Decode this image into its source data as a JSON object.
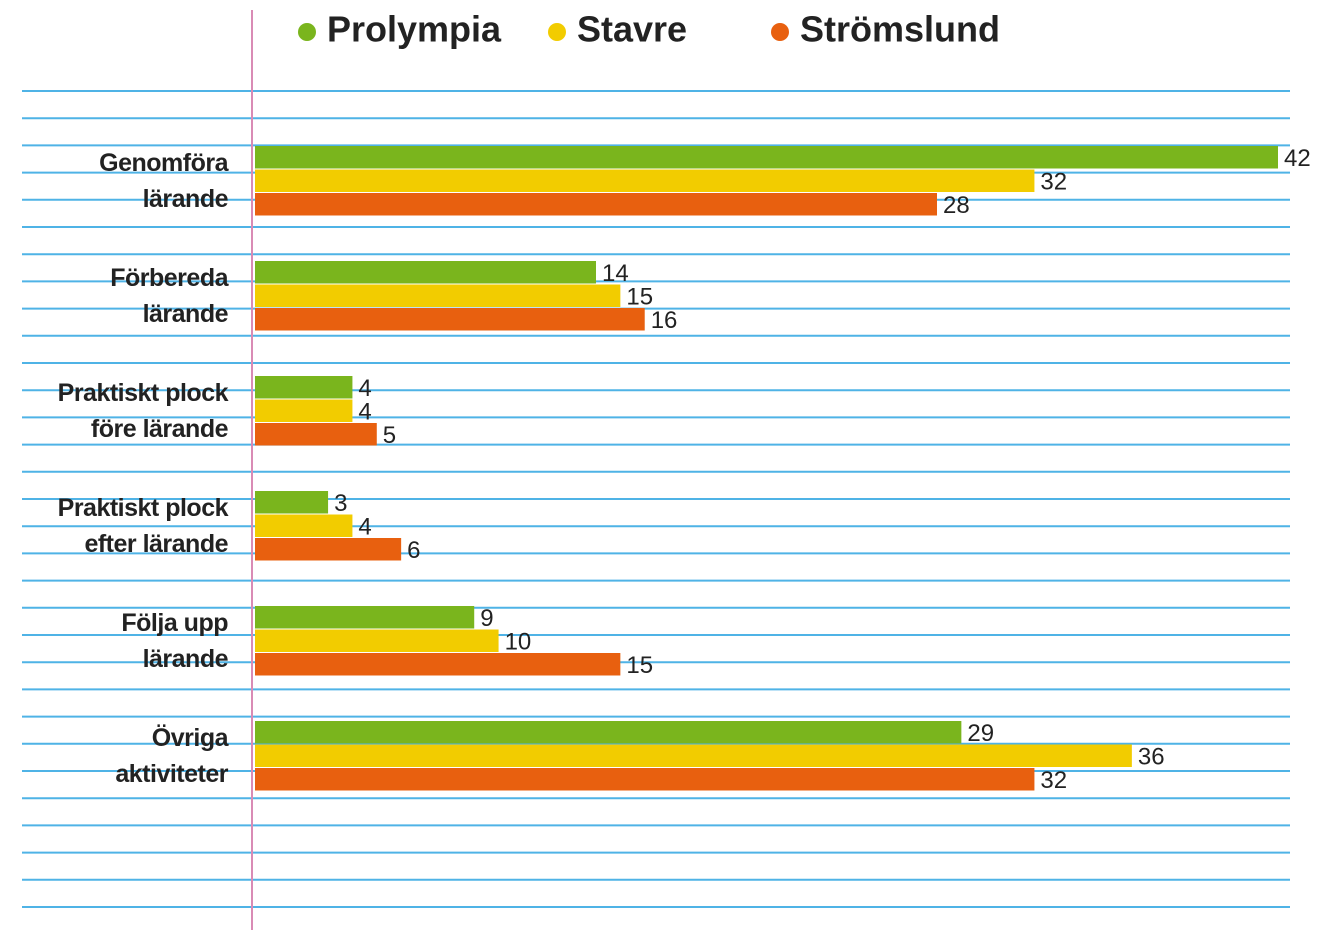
{
  "chart_data": {
    "type": "hbar",
    "categories": [
      "Genomföra\nlärande",
      "Förbereda\nlärande",
      "Praktiskt plock\nföre lärande",
      "Praktiskt plock\nefter lärande",
      "Följa upp\nlärande",
      "Övriga\naktiviteter"
    ],
    "series": [
      {
        "name": "Prolympia",
        "color": "#7ab51d",
        "values": [
          42,
          14,
          4,
          3,
          9,
          29
        ]
      },
      {
        "name": "Stavre",
        "color": "#f2cc00",
        "values": [
          32,
          15,
          4,
          4,
          10,
          36
        ]
      },
      {
        "name": "Strömslund",
        "color": "#e8600f",
        "values": [
          28,
          16,
          5,
          6,
          15,
          32
        ]
      }
    ]
  }
}
